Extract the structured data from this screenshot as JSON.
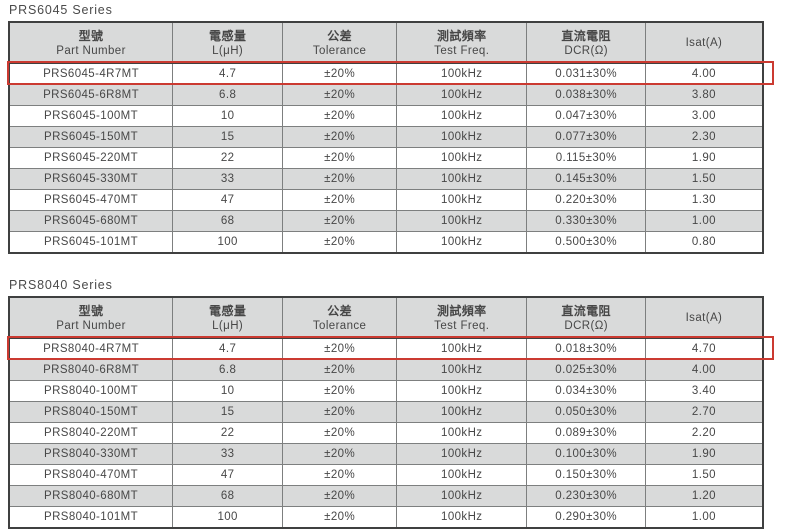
{
  "colors": {
    "highlight_red": "#cb3a31",
    "row_shade_gray": "#d9dada",
    "header_gray": "#d9dada",
    "outer_border": "#3f4040",
    "inner_border": "#7d7f7f",
    "text": "#474747"
  },
  "tables": [
    {
      "title": "PRS6045 Series",
      "columns": [
        {
          "zh": "型號",
          "en": "Part Number",
          "key": "part-number"
        },
        {
          "zh": "電感量",
          "en": "L(μH)",
          "key": "inductance"
        },
        {
          "zh": "公差",
          "en": "Tolerance",
          "key": "tolerance"
        },
        {
          "zh": "測試頻率",
          "en": "Test Freq.",
          "key": "test-freq"
        },
        {
          "zh": "直流電阻",
          "en": "DCR(Ω)",
          "key": "dcr"
        },
        {
          "zh": "",
          "en": "Isat(A)",
          "key": "isat"
        }
      ],
      "highlighted_row_index": 0,
      "rows": [
        [
          "PRS6045-4R7MT",
          "4.7",
          "±20%",
          "100kHz",
          "0.031±30%",
          "4.00"
        ],
        [
          "PRS6045-6R8MT",
          "6.8",
          "±20%",
          "100kHz",
          "0.038±30%",
          "3.80"
        ],
        [
          "PRS6045-100MT",
          "10",
          "±20%",
          "100kHz",
          "0.047±30%",
          "3.00"
        ],
        [
          "PRS6045-150MT",
          "15",
          "±20%",
          "100kHz",
          "0.077±30%",
          "2.30"
        ],
        [
          "PRS6045-220MT",
          "22",
          "±20%",
          "100kHz",
          "0.115±30%",
          "1.90"
        ],
        [
          "PRS6045-330MT",
          "33",
          "±20%",
          "100kHz",
          "0.145±30%",
          "1.50"
        ],
        [
          "PRS6045-470MT",
          "47",
          "±20%",
          "100kHz",
          "0.220±30%",
          "1.30"
        ],
        [
          "PRS6045-680MT",
          "68",
          "±20%",
          "100kHz",
          "0.330±30%",
          "1.00"
        ],
        [
          "PRS6045-101MT",
          "100",
          "±20%",
          "100kHz",
          "0.500±30%",
          "0.80"
        ]
      ]
    },
    {
      "title": "PRS8040 Series",
      "columns": [
        {
          "zh": "型號",
          "en": "Part Number",
          "key": "part-number"
        },
        {
          "zh": "電感量",
          "en": "L(μH)",
          "key": "inductance"
        },
        {
          "zh": "公差",
          "en": "Tolerance",
          "key": "tolerance"
        },
        {
          "zh": "測試頻率",
          "en": "Test Freq.",
          "key": "test-freq"
        },
        {
          "zh": "直流電阻",
          "en": "DCR(Ω)",
          "key": "dcr"
        },
        {
          "zh": "",
          "en": "Isat(A)",
          "key": "isat"
        }
      ],
      "highlighted_row_index": 0,
      "rows": [
        [
          "PRS8040-4R7MT",
          "4.7",
          "±20%",
          "100kHz",
          "0.018±30%",
          "4.70"
        ],
        [
          "PRS8040-6R8MT",
          "6.8",
          "±20%",
          "100kHz",
          "0.025±30%",
          "4.00"
        ],
        [
          "PRS8040-100MT",
          "10",
          "±20%",
          "100kHz",
          "0.034±30%",
          "3.40"
        ],
        [
          "PRS8040-150MT",
          "15",
          "±20%",
          "100kHz",
          "0.050±30%",
          "2.70"
        ],
        [
          "PRS8040-220MT",
          "22",
          "±20%",
          "100kHz",
          "0.089±30%",
          "2.20"
        ],
        [
          "PRS8040-330MT",
          "33",
          "±20%",
          "100kHz",
          "0.100±30%",
          "1.90"
        ],
        [
          "PRS8040-470MT",
          "47",
          "±20%",
          "100kHz",
          "0.150±30%",
          "1.50"
        ],
        [
          "PRS8040-680MT",
          "68",
          "±20%",
          "100kHz",
          "0.230±30%",
          "1.20"
        ],
        [
          "PRS8040-101MT",
          "100",
          "±20%",
          "100kHz",
          "0.290±30%",
          "1.00"
        ]
      ]
    }
  ]
}
